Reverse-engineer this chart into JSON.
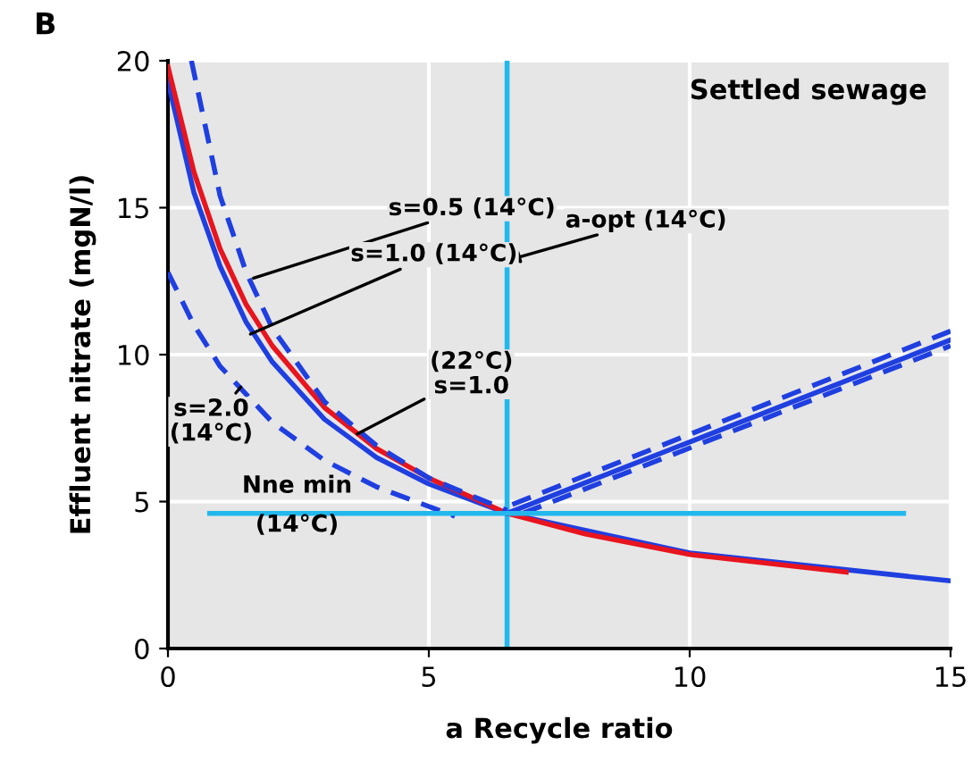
{
  "chart_data": {
    "type": "line",
    "xlabel": "a Recycle ratio",
    "ylabel": "Effluent nitrate (mgN/l)",
    "xlim": [
      0,
      15
    ],
    "xticks": [
      0,
      5,
      10,
      15
    ],
    "ylim": [
      0,
      20
    ],
    "yticks": [
      0,
      5,
      10,
      15,
      20
    ],
    "grid": true,
    "marker": "none",
    "series": [
      {
        "color": "#1f3fe0",
        "line_style": "solid",
        "x": [
          0,
          0.5,
          1,
          1.5,
          2,
          3,
          4,
          5,
          6.5,
          10,
          15
        ],
        "values": [
          19.3,
          15.5,
          13.0,
          11.1,
          9.75,
          7.8,
          6.5,
          5.6,
          4.6,
          3.25,
          2.3
        ]
      },
      {
        "color": "#e8141e",
        "line_style": "solid",
        "x": [
          0,
          0.5,
          1,
          1.5,
          2,
          3,
          4,
          5,
          6.5,
          8,
          10,
          13
        ],
        "values": [
          19.8,
          16.2,
          13.6,
          11.7,
          10.3,
          8.2,
          6.8,
          5.8,
          4.6,
          3.9,
          3.2,
          2.6
        ]
      },
      {
        "color": "#1f3fe0",
        "line_style": "dashed",
        "x": [
          0.45,
          1,
          1.5,
          2,
          3,
          4,
          5,
          6.5
        ],
        "values": [
          20,
          15.4,
          12.8,
          10.9,
          8.4,
          6.9,
          5.8,
          4.7
        ]
      },
      {
        "color": "#1f3fe0",
        "line_style": "dashed",
        "x": [
          0,
          0.5,
          1,
          2,
          3,
          4,
          5.5
        ],
        "values": [
          12.8,
          11.0,
          9.6,
          7.7,
          6.4,
          5.5,
          4.5
        ]
      },
      {
        "color": "#1f3fe0",
        "line_style": "solid",
        "x": [
          6.5,
          15
        ],
        "values": [
          4.6,
          10.5
        ]
      },
      {
        "color": "#1f3fe0",
        "line_style": "dashed",
        "x": [
          6.6,
          15
        ],
        "values": [
          4.9,
          10.8
        ]
      },
      {
        "color": "#1f3fe0",
        "line_style": "dashed",
        "x": [
          6.8,
          15
        ],
        "values": [
          4.6,
          10.3
        ]
      },
      {
        "color": "#22b8ee",
        "line_style": "solid",
        "x": [
          0.8,
          14.1
        ],
        "values": [
          4.6,
          4.6
        ]
      }
    ],
    "ref_lines": [
      {
        "axis": "x",
        "value": 6.5,
        "color": "#22b8ee"
      }
    ],
    "annotations": [
      "B",
      "Settled sewage",
      "Nne min\n(14°C)",
      {
        "text": "a-opt (14°C)",
        "x": 6.5,
        "y": 13.2
      },
      {
        "text": "s=0.5 (14°C)",
        "x": 1.64,
        "y": 12.6
      },
      {
        "text": "s=1.0 (14°C)",
        "x": 1.58,
        "y": 10.7
      },
      {
        "text": "(22°C)\ns=1.0",
        "x": 3.63,
        "y": 7.3
      },
      {
        "text": "s=2.0\n(14°C)",
        "x": 1.4,
        "y": 8.9
      }
    ]
  }
}
